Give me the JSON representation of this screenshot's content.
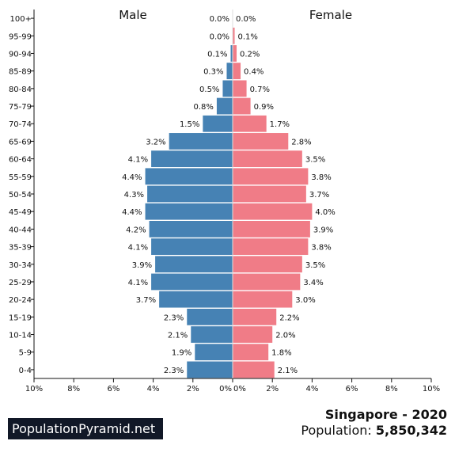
{
  "chart_data": {
    "type": "bar",
    "orientation": "horizontal",
    "title": "Singapore - 2020",
    "population_label": "Population:",
    "population_value": "5,850,342",
    "left_label": "Male",
    "right_label": "Female",
    "categories": [
      "100+",
      "95-99",
      "90-94",
      "85-89",
      "80-84",
      "75-79",
      "70-74",
      "65-69",
      "60-64",
      "55-59",
      "50-54",
      "45-49",
      "40-44",
      "35-39",
      "30-34",
      "25-29",
      "20-24",
      "15-19",
      "10-14",
      "5-9",
      "0-4"
    ],
    "series": [
      {
        "name": "Male",
        "color": "#4682b4",
        "values": [
          0.0,
          0.0,
          0.1,
          0.3,
          0.5,
          0.8,
          1.5,
          3.2,
          4.1,
          4.4,
          4.3,
          4.4,
          4.2,
          4.1,
          3.9,
          4.1,
          3.7,
          2.3,
          2.1,
          1.9,
          2.3
        ],
        "labels": [
          "0.0%",
          "0.0%",
          "0.1%",
          "0.3%",
          "0.5%",
          "0.8%",
          "1.5%",
          "3.2%",
          "4.1%",
          "4.4%",
          "4.3%",
          "4.4%",
          "4.2%",
          "4.1%",
          "3.9%",
          "4.1%",
          "3.7%",
          "2.3%",
          "2.1%",
          "1.9%",
          "2.3%"
        ]
      },
      {
        "name": "Female",
        "color": "#f07c87",
        "values": [
          0.0,
          0.1,
          0.2,
          0.4,
          0.7,
          0.9,
          1.7,
          2.8,
          3.5,
          3.8,
          3.7,
          4.0,
          3.9,
          3.8,
          3.5,
          3.4,
          3.0,
          2.2,
          2.0,
          1.8,
          2.1
        ],
        "labels": [
          "0.0%",
          "0.1%",
          "0.2%",
          "0.4%",
          "0.7%",
          "0.9%",
          "1.7%",
          "2.8%",
          "3.5%",
          "3.8%",
          "3.7%",
          "4.0%",
          "3.9%",
          "3.8%",
          "3.5%",
          "3.4%",
          "3.0%",
          "2.2%",
          "2.0%",
          "1.8%",
          "2.1%"
        ]
      }
    ],
    "xlim": [
      -10,
      10
    ],
    "x_ticks_left": [
      "10%",
      "8%",
      "6%",
      "4%",
      "2%",
      "0%"
    ],
    "x_ticks_right": [
      "0%",
      "2%",
      "4%",
      "6%",
      "8%",
      "10%"
    ],
    "grid": false
  },
  "footer": {
    "brand": "PopulationPyramid.net"
  }
}
